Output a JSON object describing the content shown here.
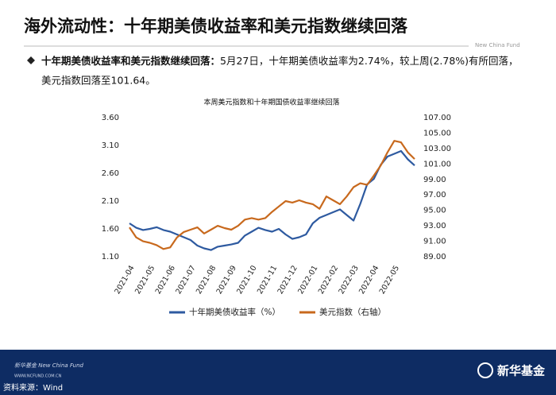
{
  "header": {
    "title": "海外流动性：十年期美债收益率和美元指数继续回落",
    "brand": "New China Fund"
  },
  "bullet": {
    "lead": "十年期美债收益率和美元指数继续回落：",
    "line1": "5月27日，十年期美债收益率为2.74%，较上周(2.78%)有所回落，",
    "line2": "美元指数回落至101.64。"
  },
  "chart_data": {
    "type": "line",
    "title": "本周美元指数和十年期国债收益率继续回落",
    "categories": [
      "2021-04",
      null,
      null,
      "2021-05",
      null,
      null,
      "2021-06",
      null,
      null,
      "2021-07",
      null,
      null,
      "2021-08",
      null,
      null,
      "2021-09",
      null,
      null,
      "2021-10",
      null,
      null,
      "2021-11",
      null,
      null,
      "2021-12",
      null,
      null,
      "2022-01",
      null,
      null,
      "2022-02",
      null,
      null,
      "2022-03",
      null,
      null,
      "2022-04",
      null,
      null,
      "2022-05",
      null,
      null,
      null
    ],
    "series": [
      {
        "name": "十年期美债收益率（%）",
        "color": "#2e5aa0",
        "values": [
          1.7,
          1.62,
          1.58,
          1.6,
          1.63,
          1.58,
          1.55,
          1.5,
          1.45,
          1.4,
          1.3,
          1.25,
          1.22,
          1.28,
          1.3,
          1.32,
          1.35,
          1.48,
          1.55,
          1.62,
          1.58,
          1.55,
          1.6,
          1.5,
          1.42,
          1.45,
          1.5,
          1.7,
          1.8,
          1.85,
          1.9,
          1.95,
          1.85,
          1.75,
          2.05,
          2.4,
          2.5,
          2.75,
          2.9,
          2.95,
          3.0,
          2.85,
          2.74
        ]
      },
      {
        "name": "美元指数（右轴）",
        "color": "#c8691d",
        "axis": "y2",
        "values": [
          92.8,
          91.5,
          91.0,
          90.8,
          90.5,
          90.0,
          90.2,
          91.5,
          92.2,
          92.5,
          92.8,
          92.0,
          92.5,
          93.0,
          92.7,
          92.5,
          93.0,
          93.8,
          94.0,
          93.8,
          94.0,
          94.8,
          95.5,
          96.2,
          96.0,
          96.3,
          96.0,
          95.8,
          95.2,
          96.8,
          96.3,
          95.8,
          96.8,
          98.0,
          98.5,
          98.3,
          99.5,
          100.8,
          102.5,
          104.0,
          103.8,
          102.5,
          101.64
        ]
      }
    ],
    "ylim": [
      1.1,
      3.6
    ],
    "yticks": [
      {
        "value": 1.1,
        "label": "1.10"
      },
      {
        "value": 1.6,
        "label": "1.60"
      },
      {
        "value": 2.1,
        "label": "2.10"
      },
      {
        "value": 2.6,
        "label": "2.60"
      },
      {
        "value": 3.1,
        "label": "3.10"
      },
      {
        "value": 3.6,
        "label": "3.60"
      }
    ],
    "y2lim": [
      89,
      107
    ],
    "y2ticks": [
      {
        "value": 89,
        "label": "89.00"
      },
      {
        "value": 91,
        "label": "91.00"
      },
      {
        "value": 93,
        "label": "93.00"
      },
      {
        "value": 95,
        "label": "95.00"
      },
      {
        "value": 97,
        "label": "97.00"
      },
      {
        "value": 99,
        "label": "99.00"
      },
      {
        "value": 101,
        "label": "101.00"
      },
      {
        "value": 103,
        "label": "103.00"
      },
      {
        "value": 105,
        "label": "105.00"
      },
      {
        "value": 107,
        "label": "107.00"
      }
    ],
    "legend": "bottom"
  },
  "footer": {
    "brand": "新华基金 New China Fund",
    "url": "WWW.NCFUND.COM.CN",
    "logo": "新华基金",
    "source": "资料来源：Wind"
  }
}
